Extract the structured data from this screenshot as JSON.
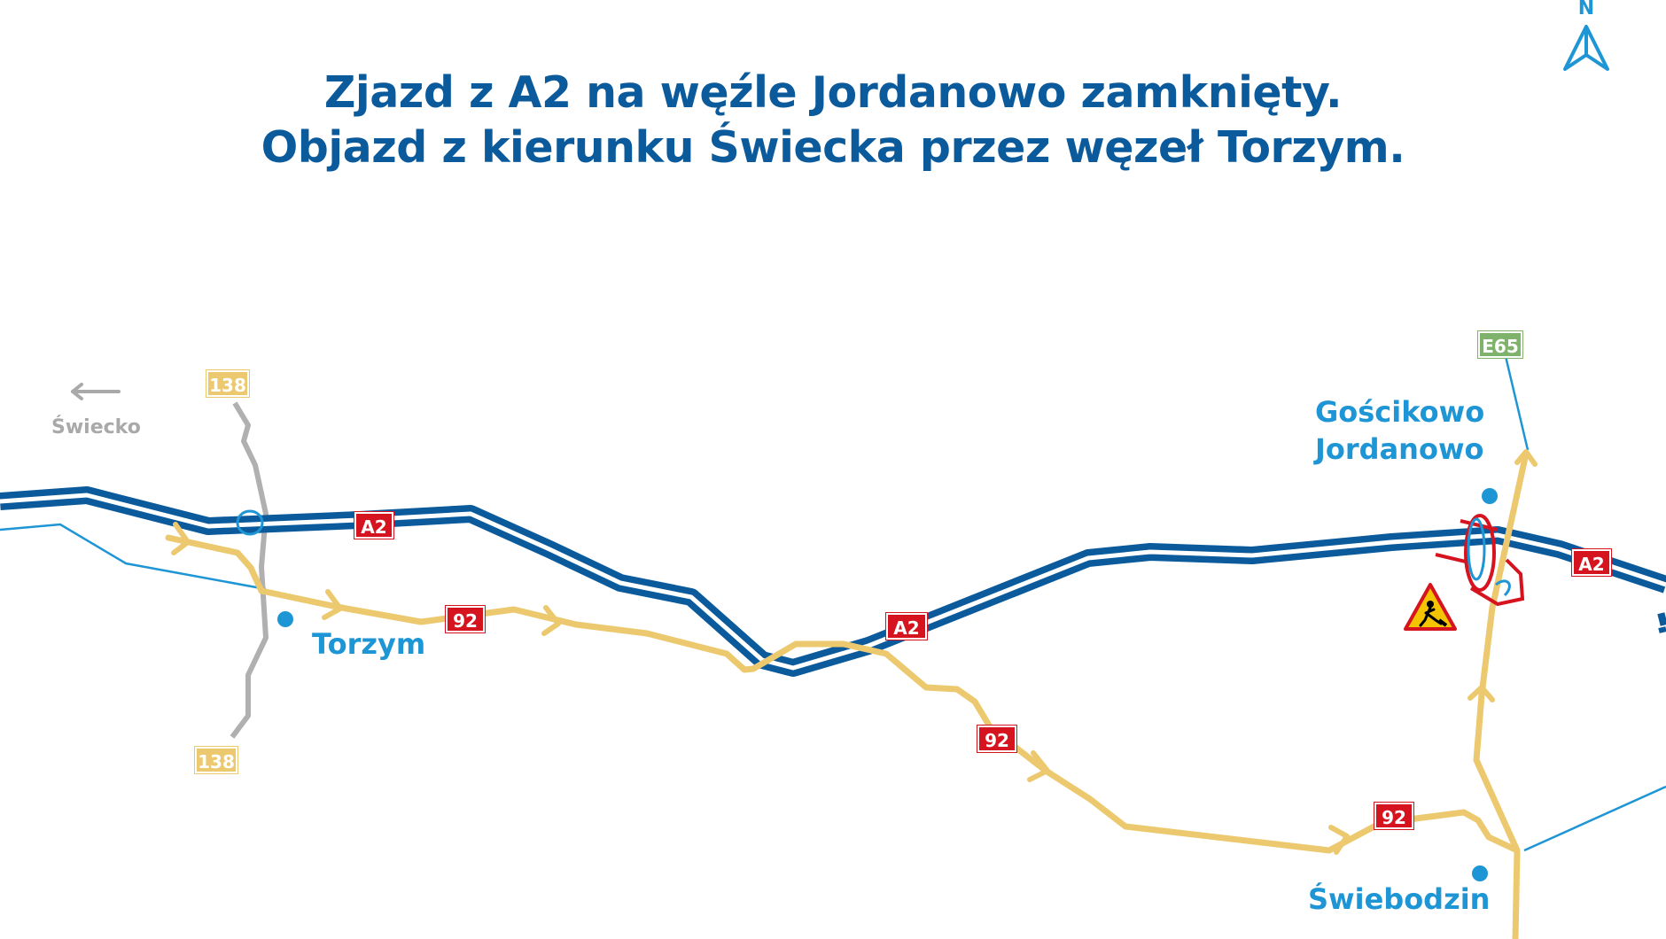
{
  "title": {
    "line1": "Zjazd z A2 na węźle Jordanowo zamknięty.",
    "line2": "Objazd z kierunku Świecka przez węzeł Torzym."
  },
  "compass": {
    "label": "N",
    "icon": "north-arrow-icon"
  },
  "places": {
    "torzym": "Torzym",
    "goscikowo": "Gościkowo",
    "jordanowo": "Jordanowo",
    "swiebodzin": "Świebodzin",
    "swiecko": "Świecko"
  },
  "road_badges": {
    "a2_west": "A2",
    "a2_mid": "A2",
    "a2_east": "A2",
    "r92_a": "92",
    "r92_b": "92",
    "r92_c": "92",
    "r138_top": "138",
    "r138_bottom": "138",
    "e65": "E65"
  },
  "icons": [
    "roadworks-warning-icon",
    "arrow-left-icon",
    "north-arrow-icon"
  ],
  "colors": {
    "title": "#0a5a9c",
    "motorway": "#0a5a9c",
    "detour": "#ecc96e",
    "local_road": "#1e95d4",
    "road_138": "#b0b0b0",
    "badge_red": "#d6141f",
    "badge_yellow": "#ecc96e",
    "badge_green": "#7fb26a",
    "closed_junction": "#d6141f",
    "place_label": "#1e95d4"
  }
}
